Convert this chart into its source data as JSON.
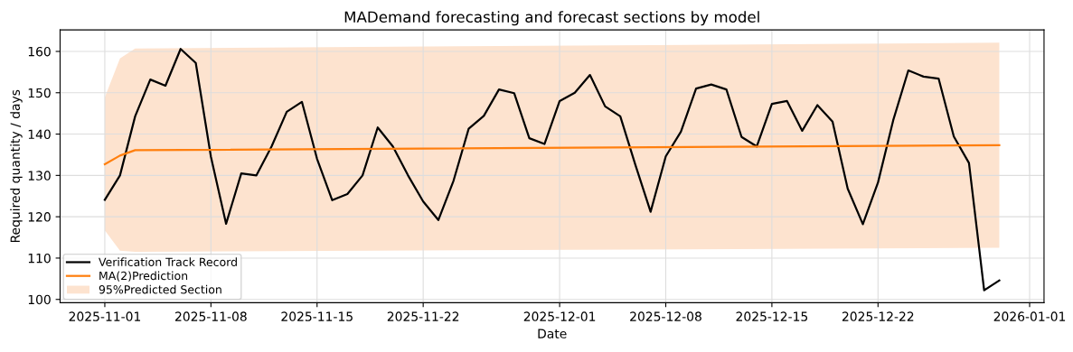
{
  "chart_data": {
    "type": "line",
    "title": "MADemand forecasting and forecast sections by model",
    "xlabel": "Date",
    "ylabel": "Required quantity / days",
    "xlim": [
      "2025-10-29T01:12",
      "2026-01-01T22:48"
    ],
    "xticks": [
      {
        "value": "2025-11-01",
        "label": "2025-11-01"
      },
      {
        "value": "2025-11-08",
        "label": "2025-11-08"
      },
      {
        "value": "2025-11-15",
        "label": "2025-11-15"
      },
      {
        "value": "2025-11-22",
        "label": "2025-11-22"
      },
      {
        "value": "2025-12-01",
        "label": "2025-12-01"
      },
      {
        "value": "2025-12-08",
        "label": "2025-12-08"
      },
      {
        "value": "2025-12-15",
        "label": "2025-12-15"
      },
      {
        "value": "2025-12-22",
        "label": "2025-12-22"
      },
      {
        "value": "2026-01-01",
        "label": "2026-01-01"
      }
    ],
    "ylim": [
      99.2,
      165.2
    ],
    "yticks": [
      100,
      110,
      120,
      130,
      140,
      150,
      160
    ],
    "grid": true,
    "legend": "bottom left",
    "series": [
      {
        "name": "Verification Track Record",
        "type": "line",
        "color": "#000000",
        "x": [
          "2025-11-01",
          "2025-11-02",
          "2025-11-03",
          "2025-11-04",
          "2025-11-05",
          "2025-11-06",
          "2025-11-07",
          "2025-11-08",
          "2025-11-09",
          "2025-11-10",
          "2025-11-11",
          "2025-11-12",
          "2025-11-13",
          "2025-11-14",
          "2025-11-15",
          "2025-11-16",
          "2025-11-17",
          "2025-11-18",
          "2025-11-19",
          "2025-11-20",
          "2025-11-21",
          "2025-11-22",
          "2025-11-23",
          "2025-11-24",
          "2025-11-25",
          "2025-11-26",
          "2025-11-27",
          "2025-11-28",
          "2025-11-29",
          "2025-11-30",
          "2025-12-01",
          "2025-12-02",
          "2025-12-03",
          "2025-12-04",
          "2025-12-05",
          "2025-12-06",
          "2025-12-07",
          "2025-12-08",
          "2025-12-09",
          "2025-12-10",
          "2025-12-11",
          "2025-12-12",
          "2025-12-13",
          "2025-12-14",
          "2025-12-15",
          "2025-12-16",
          "2025-12-17",
          "2025-12-18",
          "2025-12-19",
          "2025-12-20",
          "2025-12-21",
          "2025-12-22",
          "2025-12-23",
          "2025-12-24",
          "2025-12-25",
          "2025-12-26",
          "2025-12-27",
          "2025-12-28",
          "2025-12-29",
          "2025-12-30"
        ],
        "values": [
          124.1,
          130,
          144.3,
          153.2,
          151.7,
          160.6,
          157.2,
          134.5,
          118.3,
          130.5,
          130,
          137,
          145.4,
          147.8,
          134,
          124,
          125.5,
          130,
          141.6,
          137,
          130,
          123.7,
          119.2,
          128.7,
          141.3,
          144.4,
          150.8,
          149.9,
          139,
          137.6,
          148,
          150,
          154.3,
          146.7,
          144.3,
          132.5,
          121.2,
          134.6,
          140.6,
          151,
          152,
          150.8,
          139.3,
          137,
          147.3,
          148,
          140.8,
          147,
          143,
          126.8,
          118.2,
          128.3,
          143.3,
          155.4,
          153.9,
          153.4,
          139.4,
          133,
          102.2,
          104.6
        ]
      },
      {
        "name": "MA(2)Prediction",
        "type": "line",
        "color": "#ff7f0e",
        "x": [
          "2025-11-01",
          "2025-11-02",
          "2025-11-03",
          "2025-12-30"
        ],
        "values": [
          132.7,
          134.8,
          136.1,
          137.3
        ],
        "lower": [
          116.7,
          111.8,
          111.5,
          112.5
        ],
        "upper": [
          148.9,
          158.3,
          160.7,
          162.1
        ]
      },
      {
        "name": "95%Predicted Section",
        "type": "area",
        "color": "#fde3cf"
      }
    ]
  }
}
